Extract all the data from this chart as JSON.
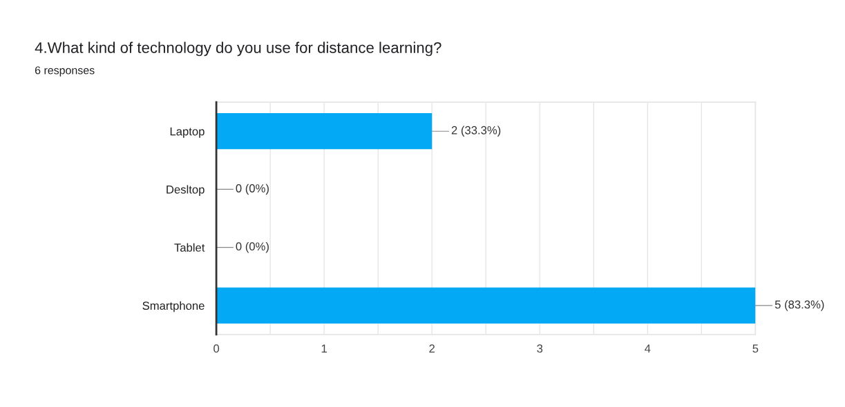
{
  "chart_data": {
    "type": "bar",
    "orientation": "horizontal",
    "title": "4.What kind of technology do you use for distance learning?",
    "subtitle": "6 responses",
    "categories": [
      "Laptop",
      "Desltop",
      "Tablet",
      "Smartphone"
    ],
    "values": [
      2,
      0,
      0,
      5
    ],
    "value_labels": [
      "2 (33.3%)",
      "0 (0%)",
      "0 (0%)",
      "5 (83.3%)"
    ],
    "color": "#03a9f4",
    "xlim": [
      0,
      5
    ],
    "xticks": [
      0,
      {
        "value": 0.5,
        "label": null
      },
      1,
      {
        "value": 1.5,
        "label": null
      },
      2,
      {
        "value": 2.5,
        "label": null
      },
      3,
      {
        "value": 3.5,
        "label": null
      },
      4,
      {
        "value": 4.5,
        "label": null
      },
      5
    ],
    "grid": "x"
  }
}
